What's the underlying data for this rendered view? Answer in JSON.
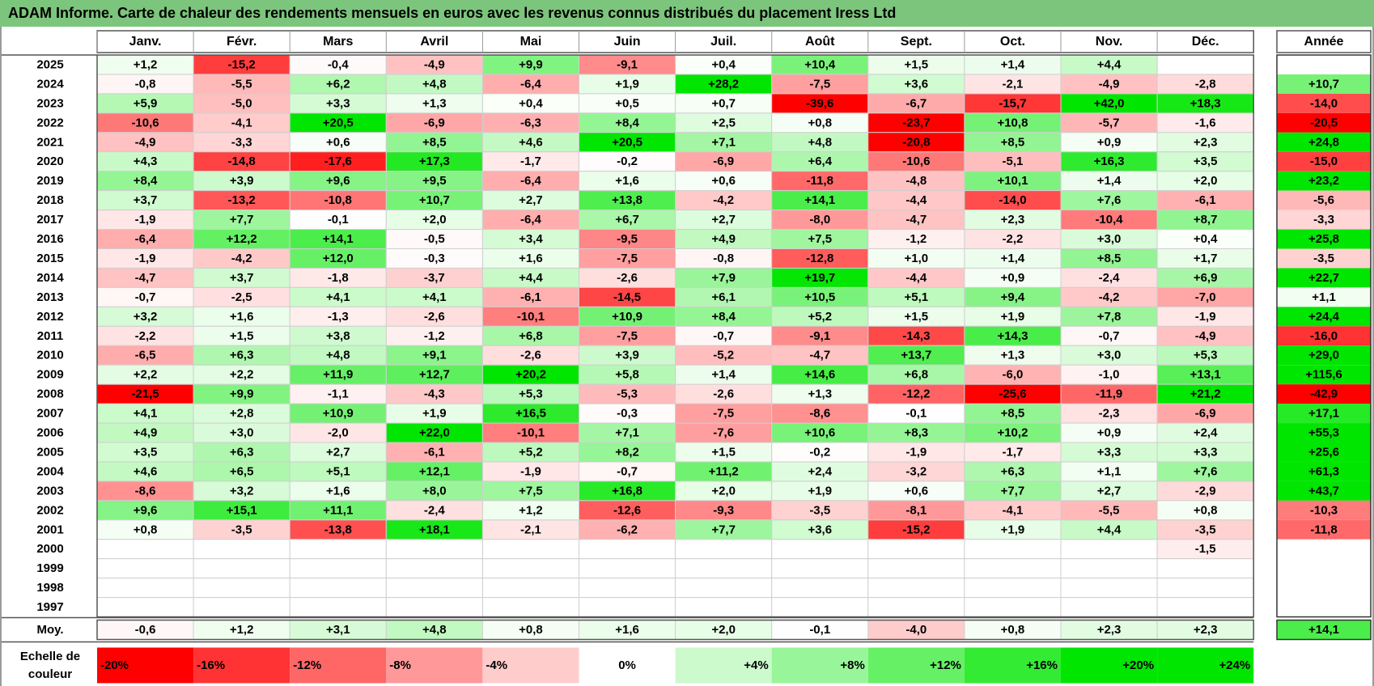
{
  "title": "ADAM Informe. Carte de chaleur des rendements mensuels en euros avec les revenus connus distribués du placement Iress Ltd",
  "colors": {
    "title_bg": "#7cc57c",
    "negative_max": "#ff0000",
    "neutral": "#ffffff",
    "positive_max": "#00e600"
  },
  "chart_data": {
    "type": "heatmap",
    "months": [
      "Janv.",
      "Févr.",
      "Mars",
      "Avril",
      "Mai",
      "Juin",
      "Juil.",
      "Août",
      "Sept.",
      "Oct.",
      "Nov.",
      "Déc."
    ],
    "year_header": "Année",
    "rows": [
      {
        "year": "2025",
        "values": [
          "+1,2",
          "-15,2",
          "-0,4",
          "-4,9",
          "+9,9",
          "-9,1",
          "+0,4",
          "+10,4",
          "+1,5",
          "+1,4",
          "+4,4",
          ""
        ],
        "annual": ""
      },
      {
        "year": "2024",
        "values": [
          "-0,8",
          "-5,5",
          "+6,2",
          "+4,8",
          "-6,4",
          "+1,9",
          "+28,2",
          "-7,5",
          "+3,6",
          "-2,1",
          "-4,9",
          "-2,8"
        ],
        "annual": "+10,7"
      },
      {
        "year": "2023",
        "values": [
          "+5,9",
          "-5,0",
          "+3,3",
          "+1,3",
          "+0,4",
          "+0,5",
          "+0,7",
          "-39,6",
          "-6,7",
          "-15,7",
          "+42,0",
          "+18,3"
        ],
        "annual": "-14,0"
      },
      {
        "year": "2022",
        "values": [
          "-10,6",
          "-4,1",
          "+20,5",
          "-6,9",
          "-6,3",
          "+8,4",
          "+2,5",
          "+0,8",
          "-23,7",
          "+10,8",
          "-5,7",
          "-1,6"
        ],
        "annual": "-20,5"
      },
      {
        "year": "2021",
        "values": [
          "-4,9",
          "-3,3",
          "+0,6",
          "+8,5",
          "+4,6",
          "+20,5",
          "+7,1",
          "+4,8",
          "-20,8",
          "+8,5",
          "+0,9",
          "+2,3"
        ],
        "annual": "+24,8"
      },
      {
        "year": "2020",
        "values": [
          "+4,3",
          "-14,8",
          "-17,6",
          "+17,3",
          "-1,7",
          "-0,2",
          "-6,9",
          "+6,4",
          "-10,6",
          "-5,1",
          "+16,3",
          "+3,5"
        ],
        "annual": "-15,0"
      },
      {
        "year": "2019",
        "values": [
          "+8,4",
          "+3,9",
          "+9,6",
          "+9,5",
          "-6,4",
          "+1,6",
          "+0,6",
          "-11,8",
          "-4,8",
          "+10,1",
          "+1,4",
          "+2,0"
        ],
        "annual": "+23,2"
      },
      {
        "year": "2018",
        "values": [
          "+3,7",
          "-13,2",
          "-10,8",
          "+10,7",
          "+2,7",
          "+13,8",
          "-4,2",
          "+14,1",
          "-4,4",
          "-14,0",
          "+7,6",
          "-6,1"
        ],
        "annual": "-5,6"
      },
      {
        "year": "2017",
        "values": [
          "-1,9",
          "+7,7",
          "-0,1",
          "+2,0",
          "-6,4",
          "+6,7",
          "+2,7",
          "-8,0",
          "-4,7",
          "+2,3",
          "-10,4",
          "+8,7"
        ],
        "annual": "-3,3"
      },
      {
        "year": "2016",
        "values": [
          "-6,4",
          "+12,2",
          "+14,1",
          "-0,5",
          "+3,4",
          "-9,5",
          "+4,9",
          "+7,5",
          "-1,2",
          "-2,2",
          "+3,0",
          "+0,4"
        ],
        "annual": "+25,8"
      },
      {
        "year": "2015",
        "values": [
          "-1,9",
          "-4,2",
          "+12,0",
          "-0,3",
          "+1,6",
          "-7,5",
          "-0,8",
          "-12,8",
          "+1,0",
          "+1,4",
          "+8,5",
          "+1,7"
        ],
        "annual": "-3,5"
      },
      {
        "year": "2014",
        "values": [
          "-4,7",
          "+3,7",
          "-1,8",
          "-3,7",
          "+4,4",
          "-2,6",
          "+7,9",
          "+19,7",
          "-4,4",
          "+0,9",
          "-2,4",
          "+6,9"
        ],
        "annual": "+22,7"
      },
      {
        "year": "2013",
        "values": [
          "-0,7",
          "-2,5",
          "+4,1",
          "+4,1",
          "-6,1",
          "-14,5",
          "+6,1",
          "+10,5",
          "+5,1",
          "+9,4",
          "-4,2",
          "-7,0"
        ],
        "annual": "+1,1"
      },
      {
        "year": "2012",
        "values": [
          "+3,2",
          "+1,6",
          "-1,3",
          "-2,6",
          "-10,1",
          "+10,9",
          "+8,4",
          "+5,2",
          "+1,5",
          "+1,9",
          "+7,8",
          "-1,9"
        ],
        "annual": "+24,4"
      },
      {
        "year": "2011",
        "values": [
          "-2,2",
          "+1,5",
          "+3,8",
          "-1,2",
          "+6,8",
          "-7,5",
          "-0,7",
          "-9,1",
          "-14,3",
          "+14,3",
          "-0,7",
          "-4,9"
        ],
        "annual": "-16,0"
      },
      {
        "year": "2010",
        "values": [
          "-6,5",
          "+6,3",
          "+4,8",
          "+9,1",
          "-2,6",
          "+3,9",
          "-5,2",
          "-4,7",
          "+13,7",
          "+1,3",
          "+3,0",
          "+5,3"
        ],
        "annual": "+29,0"
      },
      {
        "year": "2009",
        "values": [
          "+2,2",
          "+2,2",
          "+11,9",
          "+12,7",
          "+20,2",
          "+5,8",
          "+1,4",
          "+14,6",
          "+6,8",
          "-6,0",
          "-1,0",
          "+13,1"
        ],
        "annual": "+115,6"
      },
      {
        "year": "2008",
        "values": [
          "-21,5",
          "+9,9",
          "-1,1",
          "-4,3",
          "+5,3",
          "-5,3",
          "-2,6",
          "+1,3",
          "-12,2",
          "-25,6",
          "-11,9",
          "+21,2"
        ],
        "annual": "-42,9"
      },
      {
        "year": "2007",
        "values": [
          "+4,1",
          "+2,8",
          "+10,9",
          "+1,9",
          "+16,5",
          "-0,3",
          "-7,5",
          "-8,6",
          "-0,1",
          "+8,5",
          "-2,3",
          "-6,9"
        ],
        "annual": "+17,1"
      },
      {
        "year": "2006",
        "values": [
          "+4,9",
          "+3,0",
          "-2,0",
          "+22,0",
          "-10,1",
          "+7,1",
          "-7,6",
          "+10,6",
          "+8,3",
          "+10,2",
          "+0,9",
          "+2,4"
        ],
        "annual": "+55,3"
      },
      {
        "year": "2005",
        "values": [
          "+3,5",
          "+6,3",
          "+2,7",
          "-6,1",
          "+5,2",
          "+8,2",
          "+1,5",
          "-0,2",
          "-1,9",
          "-1,7",
          "+3,3",
          "+3,3"
        ],
        "annual": "+25,6"
      },
      {
        "year": "2004",
        "values": [
          "+4,6",
          "+6,5",
          "+5,1",
          "+12,1",
          "-1,9",
          "-0,7",
          "+11,2",
          "+2,4",
          "-3,2",
          "+6,3",
          "+1,1",
          "+7,6"
        ],
        "annual": "+61,3"
      },
      {
        "year": "2003",
        "values": [
          "-8,6",
          "+3,2",
          "+1,6",
          "+8,0",
          "+7,5",
          "+16,8",
          "+2,0",
          "+1,9",
          "+0,6",
          "+7,7",
          "+2,7",
          "-2,9"
        ],
        "annual": "+43,7"
      },
      {
        "year": "2002",
        "values": [
          "+9,6",
          "+15,1",
          "+11,1",
          "-2,4",
          "+1,2",
          "-12,6",
          "-9,3",
          "-3,5",
          "-8,1",
          "-4,1",
          "-5,5",
          "+0,8"
        ],
        "annual": "-10,3"
      },
      {
        "year": "2001",
        "values": [
          "+0,8",
          "-3,5",
          "-13,8",
          "+18,1",
          "-2,1",
          "-6,2",
          "+7,7",
          "+3,6",
          "-15,2",
          "+1,9",
          "+4,4",
          "-3,5"
        ],
        "annual": "-11,8"
      },
      {
        "year": "2000",
        "values": [
          "",
          "",
          "",
          "",
          "",
          "",
          "",
          "",
          "",
          "",
          "",
          "-1,5"
        ],
        "annual": ""
      },
      {
        "year": "1999",
        "values": [
          "",
          "",
          "",
          "",
          "",
          "",
          "",
          "",
          "",
          "",
          "",
          ""
        ],
        "annual": ""
      },
      {
        "year": "1998",
        "values": [
          "",
          "",
          "",
          "",
          "",
          "",
          "",
          "",
          "",
          "",
          "",
          ""
        ],
        "annual": ""
      },
      {
        "year": "1997",
        "values": [
          "",
          "",
          "",
          "",
          "",
          "",
          "",
          "",
          "",
          "",
          "",
          ""
        ],
        "annual": ""
      }
    ],
    "average": {
      "label": "Moy.",
      "values": [
        "-0,6",
        "+1,2",
        "+3,1",
        "+4,8",
        "+0,8",
        "+1,6",
        "+2,0",
        "-0,1",
        "-4,0",
        "+0,8",
        "+2,3",
        "+2,3"
      ],
      "annual": "+14,1"
    },
    "scale": {
      "label_line1": "Echelle de",
      "label_line2": "couleur",
      "steps": [
        "-20%",
        "-16%",
        "-12%",
        "-8%",
        "-4%",
        "0%",
        "+4%",
        "+8%",
        "+12%",
        "+16%",
        "+20%",
        "+24%"
      ],
      "step_values": [
        -20,
        -16,
        -12,
        -8,
        -4,
        0,
        4,
        8,
        12,
        16,
        20,
        24
      ]
    }
  }
}
